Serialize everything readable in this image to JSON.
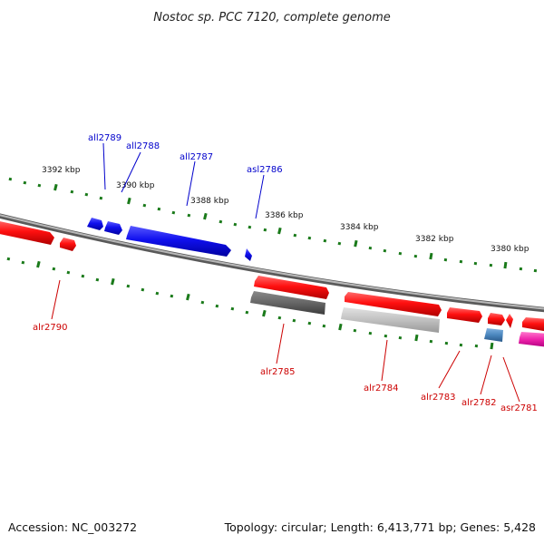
{
  "title": "Nostoc sp. PCC 7120, complete genome",
  "footer": {
    "accession": "Accession: NC_003272",
    "summary": "Topology: circular; Length: 6,413,771 bp; Genes: 5,428"
  },
  "colors": {
    "backbone": "#8c8c8c",
    "tick": "#1a7a1a",
    "forward_gene": "#ee1111",
    "reverse_gene": "#1414e6",
    "forward_label": "#cc0000",
    "reverse_label": "#0000cc",
    "dark_gray_feature": "#707070",
    "light_gray_feature": "#c4c4c4",
    "steel_blue_feature": "#4a86bd",
    "magenta_feature": "#ee22aa"
  },
  "scale_ticks": [
    {
      "label": "3392 kbp"
    },
    {
      "label": "3390 kbp"
    },
    {
      "label": "3388 kbp"
    },
    {
      "label": "3386 kbp"
    },
    {
      "label": "3384 kbp"
    },
    {
      "label": "3382 kbp"
    },
    {
      "label": "3380 kbp"
    }
  ],
  "genes": [
    {
      "name": "all2789",
      "strand": "reverse"
    },
    {
      "name": "all2788",
      "strand": "reverse"
    },
    {
      "name": "all2787",
      "strand": "reverse"
    },
    {
      "name": "asl2786",
      "strand": "reverse"
    },
    {
      "name": "alr2790",
      "strand": "forward"
    },
    {
      "name": "alr2785",
      "strand": "forward"
    },
    {
      "name": "alr2784",
      "strand": "forward"
    },
    {
      "name": "alr2783",
      "strand": "forward"
    },
    {
      "name": "alr2782",
      "strand": "forward"
    },
    {
      "name": "asr2781",
      "strand": "forward"
    }
  ]
}
